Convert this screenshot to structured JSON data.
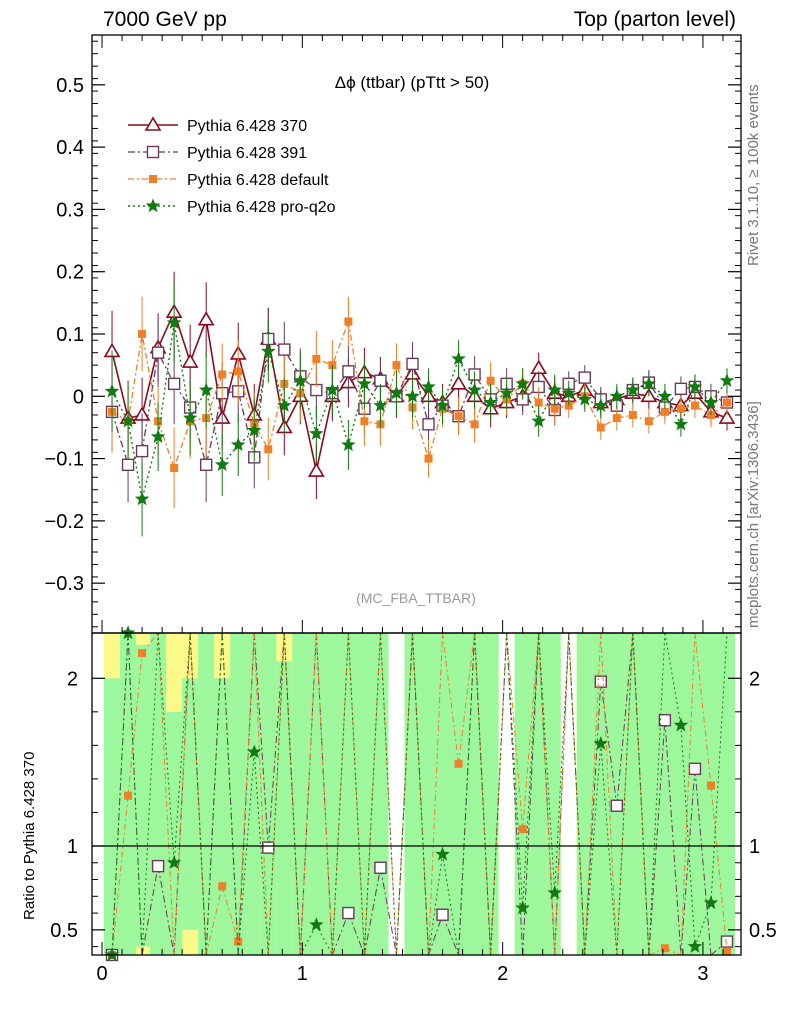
{
  "header": {
    "left": "7000 GeV pp",
    "right": "Top (parton level)"
  },
  "side_labels": {
    "rivet": "Rivet 3.1.10, ≥ 100k events",
    "mcplots": "mcplots.cern.ch [arXiv:1306.3436]"
  },
  "ratio_ylabel": "Ratio to Pythia 6.428 370",
  "colors": {
    "p370": "#8b0a1e",
    "p391": "#6b3a5a",
    "default": "#f07f2a",
    "proq2o": "#117a11",
    "band_outer": "#fbfa89",
    "band_inner": "#9df79d"
  },
  "chart_data": [
    {
      "type": "line",
      "title": "Δϕ (ttbar) (pTtt > 50)",
      "watermark": "(MC_FBA_TTBAR)",
      "xlim": [
        -0.05,
        3.19
      ],
      "ylim": [
        -0.38,
        0.58
      ],
      "yticks": [
        -0.3,
        -0.2,
        -0.1,
        0,
        0.1,
        0.2,
        0.3,
        0.4,
        0.5
      ],
      "ytick_labels": [
        "−0.3",
        "−0.2",
        "−0.1",
        "0",
        "0.1",
        "0.2",
        "0.3",
        "0.4",
        "0.5"
      ],
      "x": [
        0.05,
        0.13,
        0.2,
        0.28,
        0.36,
        0.44,
        0.52,
        0.6,
        0.68,
        0.76,
        0.83,
        0.91,
        0.99,
        1.07,
        1.15,
        1.23,
        1.31,
        1.39,
        1.47,
        1.55,
        1.63,
        1.7,
        1.78,
        1.86,
        1.94,
        2.02,
        2.1,
        2.18,
        2.26,
        2.33,
        2.41,
        2.49,
        2.57,
        2.65,
        2.73,
        2.81,
        2.89,
        2.96,
        3.04,
        3.12
      ],
      "legend_position": "top-left",
      "series": [
        {
          "name": "Pythia 6.428 370",
          "key": "p370",
          "marker": "triangle",
          "y": [
            0.072,
            -0.035,
            -0.03,
            0.078,
            0.135,
            0.055,
            0.123,
            -0.035,
            0.068,
            -0.03,
            0.092,
            -0.05,
            0.0,
            -0.12,
            0.0,
            0.022,
            0.038,
            0.028,
            0.0,
            0.036,
            0.0,
            -0.01,
            0.02,
            0.0,
            -0.02,
            -0.01,
            0.0,
            0.045,
            0.005,
            0.0,
            0.01,
            -0.01,
            -0.005,
            0.005,
            0.0,
            -0.01,
            -0.015,
            0.005,
            -0.025,
            -0.035
          ],
          "err": [
            0.065,
            0.06,
            0.06,
            0.055,
            0.065,
            0.06,
            0.06,
            0.05,
            0.05,
            0.05,
            0.05,
            0.045,
            0.045,
            0.045,
            0.04,
            0.04,
            0.04,
            0.035,
            0.035,
            0.035,
            0.03,
            0.03,
            0.03,
            0.03,
            0.03,
            0.025,
            0.025,
            0.025,
            0.025,
            0.02,
            0.02,
            0.02,
            0.02,
            0.02,
            0.02,
            0.02,
            0.02,
            0.02,
            0.02,
            0.02
          ]
        },
        {
          "name": "Pythia 6.428 391",
          "key": "p391",
          "marker": "square",
          "y": [
            -0.025,
            -0.11,
            -0.088,
            0.07,
            0.02,
            -0.018,
            -0.11,
            0.005,
            0.008,
            -0.098,
            0.092,
            0.075,
            0.032,
            0.01,
            0.005,
            0.04,
            -0.02,
            0.025,
            0.0,
            0.052,
            -0.045,
            -0.015,
            -0.032,
            0.035,
            -0.005,
            0.02,
            -0.005,
            0.015,
            -0.022,
            0.02,
            0.03,
            -0.005,
            -0.015,
            0.01,
            0.022,
            -0.018,
            0.012,
            0.015,
            0.0,
            -0.01
          ],
          "err": [
            0.065,
            0.06,
            0.06,
            0.055,
            0.065,
            0.06,
            0.06,
            0.05,
            0.05,
            0.05,
            0.05,
            0.045,
            0.045,
            0.045,
            0.04,
            0.04,
            0.04,
            0.035,
            0.035,
            0.035,
            0.03,
            0.03,
            0.03,
            0.03,
            0.03,
            0.025,
            0.025,
            0.025,
            0.025,
            0.02,
            0.02,
            0.02,
            0.02,
            0.02,
            0.02,
            0.02,
            0.02,
            0.02,
            0.02,
            0.02
          ]
        },
        {
          "name": "Pythia 6.428 default",
          "key": "default",
          "marker": "filled-square",
          "y": [
            -0.025,
            -0.04,
            0.1,
            -0.04,
            -0.115,
            -0.04,
            -0.035,
            0.035,
            0.04,
            -0.045,
            -0.085,
            0.02,
            0.005,
            0.06,
            0.05,
            0.12,
            -0.04,
            -0.045,
            0.05,
            -0.018,
            -0.1,
            -0.02,
            -0.032,
            -0.045,
            0.025,
            -0.005,
            0.02,
            -0.01,
            -0.02,
            -0.015,
            0.0,
            -0.05,
            -0.035,
            -0.03,
            -0.04,
            -0.025,
            -0.02,
            -0.015,
            -0.03,
            -0.01
          ],
          "err": [
            0.065,
            0.06,
            0.06,
            0.055,
            0.065,
            0.06,
            0.06,
            0.05,
            0.05,
            0.05,
            0.05,
            0.045,
            0.045,
            0.045,
            0.04,
            0.04,
            0.04,
            0.035,
            0.035,
            0.035,
            0.03,
            0.03,
            0.03,
            0.03,
            0.03,
            0.025,
            0.025,
            0.025,
            0.025,
            0.02,
            0.02,
            0.02,
            0.02,
            0.02,
            0.02,
            0.02,
            0.02,
            0.02,
            0.02,
            0.02
          ]
        },
        {
          "name": "Pythia 6.428 pro-q2o",
          "key": "proq2o",
          "marker": "star",
          "y": [
            0.008,
            -0.04,
            -0.165,
            -0.065,
            0.118,
            -0.035,
            0.01,
            -0.11,
            -0.078,
            -0.055,
            0.072,
            -0.015,
            0.025,
            -0.06,
            0.01,
            -0.078,
            0.02,
            -0.015,
            0.005,
            0.0,
            0.015,
            -0.015,
            0.06,
            0.01,
            -0.01,
            0.005,
            0.02,
            -0.04,
            0.01,
            0.005,
            -0.005,
            -0.015,
            0.0,
            0.01,
            0.02,
            0.0,
            -0.045,
            0.015,
            -0.01,
            0.025
          ],
          "err": [
            0.065,
            0.06,
            0.06,
            0.055,
            0.065,
            0.06,
            0.06,
            0.05,
            0.05,
            0.05,
            0.05,
            0.045,
            0.045,
            0.045,
            0.04,
            0.04,
            0.04,
            0.035,
            0.035,
            0.035,
            0.03,
            0.03,
            0.03,
            0.03,
            0.03,
            0.025,
            0.025,
            0.025,
            0.025,
            0.02,
            0.02,
            0.02,
            0.02,
            0.02,
            0.02,
            0.02,
            0.02,
            0.02,
            0.02,
            0.02
          ]
        }
      ]
    },
    {
      "type": "line",
      "xlim": [
        -0.05,
        3.19
      ],
      "ylim": [
        0.35,
        2.27
      ],
      "xticks": [
        0,
        1,
        2,
        3
      ],
      "xtick_labels": [
        "0",
        "1",
        "2",
        "3"
      ],
      "yticks": [
        0.5,
        1,
        2
      ],
      "ytick_labels": [
        "0.5",
        "1",
        "2"
      ],
      "reference_line": 1,
      "band_x": [
        0.01,
        0.09,
        0.17,
        0.24,
        0.32,
        0.4,
        0.48,
        0.56,
        0.64,
        0.72,
        0.79,
        0.87,
        0.95,
        1.03,
        1.11,
        1.19,
        1.27,
        1.35,
        1.43,
        1.51,
        1.59,
        1.66,
        1.74,
        1.82,
        1.9,
        1.98,
        2.06,
        2.14,
        2.22,
        2.29,
        2.37,
        2.45,
        2.53,
        2.61,
        2.69,
        2.77,
        2.85,
        2.92,
        3.0,
        3.08,
        3.16
      ],
      "band_outer": [
        [
          0.35,
          2.27
        ],
        [
          0.35,
          2.27
        ],
        [
          0.35,
          2.27
        ],
        [
          0.35,
          2.27
        ],
        [
          0.35,
          2.27
        ],
        [
          0.35,
          2.27
        ],
        [
          0.35,
          2.27
        ],
        [
          0.35,
          2.27
        ],
        [
          0.35,
          2.27
        ],
        [
          0.35,
          2.27
        ],
        [
          0.35,
          2.27
        ],
        [
          0.35,
          2.27
        ],
        [
          0.35,
          2.27
        ],
        [
          0.35,
          2.27
        ],
        [
          0.35,
          2.27
        ],
        [
          0.35,
          2.27
        ],
        [
          0.35,
          2.27
        ],
        [
          0.35,
          2.27
        ],
        [
          null,
          null
        ],
        [
          0.35,
          2.27
        ],
        [
          0.35,
          2.27
        ],
        [
          0.35,
          2.27
        ],
        [
          0.35,
          2.27
        ],
        [
          0.35,
          2.27
        ],
        [
          0.35,
          2.27
        ],
        [
          null,
          null
        ],
        [
          0.35,
          2.27
        ],
        [
          0.35,
          2.27
        ],
        [
          0.35,
          2.27
        ],
        [
          null,
          null
        ],
        [
          0.35,
          2.27
        ],
        [
          0.35,
          2.27
        ],
        [
          0.35,
          2.27
        ],
        [
          0.35,
          2.27
        ],
        [
          0.35,
          2.27
        ],
        [
          0.35,
          2.27
        ],
        [
          0.35,
          2.27
        ],
        [
          0.35,
          2.27
        ],
        [
          0.35,
          2.27
        ],
        [
          0.35,
          2.27
        ]
      ],
      "band_inner": [
        [
          0.35,
          2.0
        ],
        [
          0.35,
          2.27
        ],
        [
          0.4,
          2.2
        ],
        [
          0.35,
          2.27
        ],
        [
          0.35,
          1.8
        ],
        [
          0.5,
          2.0
        ],
        [
          0.35,
          2.27
        ],
        [
          0.35,
          2.0
        ],
        [
          0.35,
          2.27
        ],
        [
          0.35,
          2.27
        ],
        [
          0.35,
          2.27
        ],
        [
          0.35,
          2.1
        ],
        [
          0.35,
          2.27
        ],
        [
          0.35,
          2.27
        ],
        [
          0.35,
          2.27
        ],
        [
          0.35,
          2.27
        ],
        [
          0.35,
          2.27
        ],
        [
          0.35,
          2.27
        ],
        [
          null,
          null
        ],
        [
          0.35,
          2.27
        ],
        [
          0.35,
          2.27
        ],
        [
          0.35,
          2.27
        ],
        [
          0.35,
          2.27
        ],
        [
          0.35,
          2.27
        ],
        [
          0.35,
          2.27
        ],
        [
          null,
          null
        ],
        [
          0.35,
          2.27
        ],
        [
          0.35,
          2.27
        ],
        [
          0.35,
          2.27
        ],
        [
          null,
          null
        ],
        [
          0.35,
          2.27
        ],
        [
          0.35,
          2.27
        ],
        [
          0.35,
          2.27
        ],
        [
          0.35,
          2.27
        ],
        [
          0.35,
          2.27
        ],
        [
          0.35,
          2.27
        ],
        [
          0.35,
          2.27
        ],
        [
          0.35,
          2.27
        ],
        [
          0.35,
          2.27
        ],
        [
          0.35,
          2.27
        ]
      ],
      "series": [
        {
          "name": "Pythia 6.428 391",
          "key": "p391",
          "marker": "square",
          "y": [
            0.35,
            null,
            null,
            0.88,
            null,
            null,
            null,
            null,
            null,
            null,
            0.99,
            null,
            null,
            null,
            null,
            0.6,
            null,
            0.87,
            null,
            null,
            null,
            0.59,
            null,
            null,
            null,
            null,
            null,
            null,
            null,
            null,
            null,
            1.98,
            1.24,
            null,
            null,
            1.75,
            null,
            1.46,
            null,
            0.43
          ]
        },
        {
          "name": "Pythia 6.428 default",
          "key": "default",
          "marker": "filled-square",
          "y": [
            0.35,
            1.3,
            2.15,
            null,
            null,
            null,
            null,
            0.76,
            0.43,
            null,
            null,
            null,
            null,
            null,
            null,
            null,
            null,
            null,
            null,
            null,
            null,
            null,
            1.49,
            null,
            null,
            null,
            1.1,
            null,
            null,
            null,
            null,
            null,
            null,
            null,
            null,
            0.39,
            null,
            null,
            1.36,
            0.37
          ]
        },
        {
          "name": "Pythia 6.428 pro-q2o",
          "key": "proq2o",
          "marker": "star",
          "y": [
            0.35,
            2.27,
            null,
            null,
            0.9,
            null,
            null,
            null,
            null,
            1.56,
            null,
            null,
            null,
            0.53,
            null,
            null,
            null,
            null,
            null,
            null,
            null,
            0.95,
            null,
            null,
            null,
            null,
            0.63,
            null,
            0.72,
            null,
            null,
            1.61,
            null,
            null,
            null,
            null,
            1.72,
            0.4,
            0.66,
            null
          ]
        }
      ]
    }
  ]
}
